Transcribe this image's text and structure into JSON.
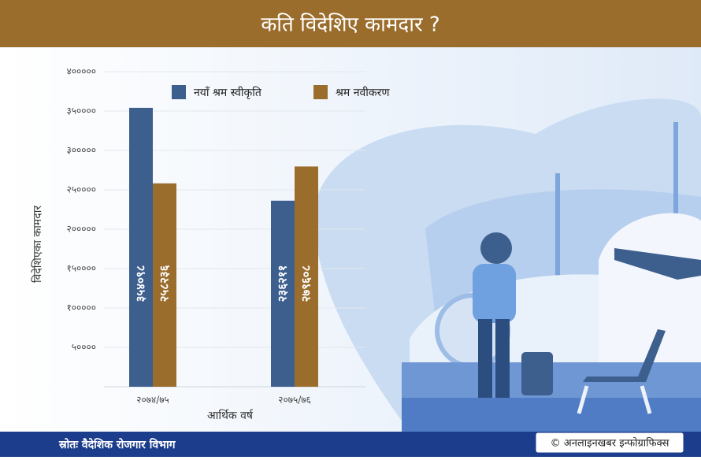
{
  "chart_data": {
    "type": "bar",
    "title": "कति विदेशिए कामदार ?",
    "categories": [
      "२०७४/७५",
      "२०७५/७६"
    ],
    "series": [
      {
        "name": "नयाँ श्रम स्वीकृति",
        "color": "#3d5f8e",
        "values": [
          354098,
          236211
        ],
        "value_labels": [
          "३५४०९८",
          "२३६२११"
        ]
      },
      {
        "name": "श्रम नवीकरण",
        "color": "#9b6d2d",
        "values": [
          258236,
          279608
        ],
        "value_labels": [
          "२५८२३६",
          "२७९६०८"
        ]
      }
    ],
    "ylim": [
      0,
      400000
    ],
    "yticks": [
      {
        "value": 50000,
        "label": "५००००"
      },
      {
        "value": 100000,
        "label": "१०००००"
      },
      {
        "value": 150000,
        "label": "१५००००"
      },
      {
        "value": 200000,
        "label": "२०००००"
      },
      {
        "value": 250000,
        "label": "२५००००"
      },
      {
        "value": 300000,
        "label": "३०००००"
      },
      {
        "value": 350000,
        "label": "३५००००"
      },
      {
        "value": 400000,
        "label": "४०००००"
      }
    ],
    "ylabel": "विदेशिएका कामदार",
    "xlabel": "आर्थिक वर्ष",
    "grid": true,
    "source": "स्रोतः वैदेशिक रोजगार विभाग",
    "credit": "© अनलाइनखबर इन्फोग्राफिक्स"
  }
}
